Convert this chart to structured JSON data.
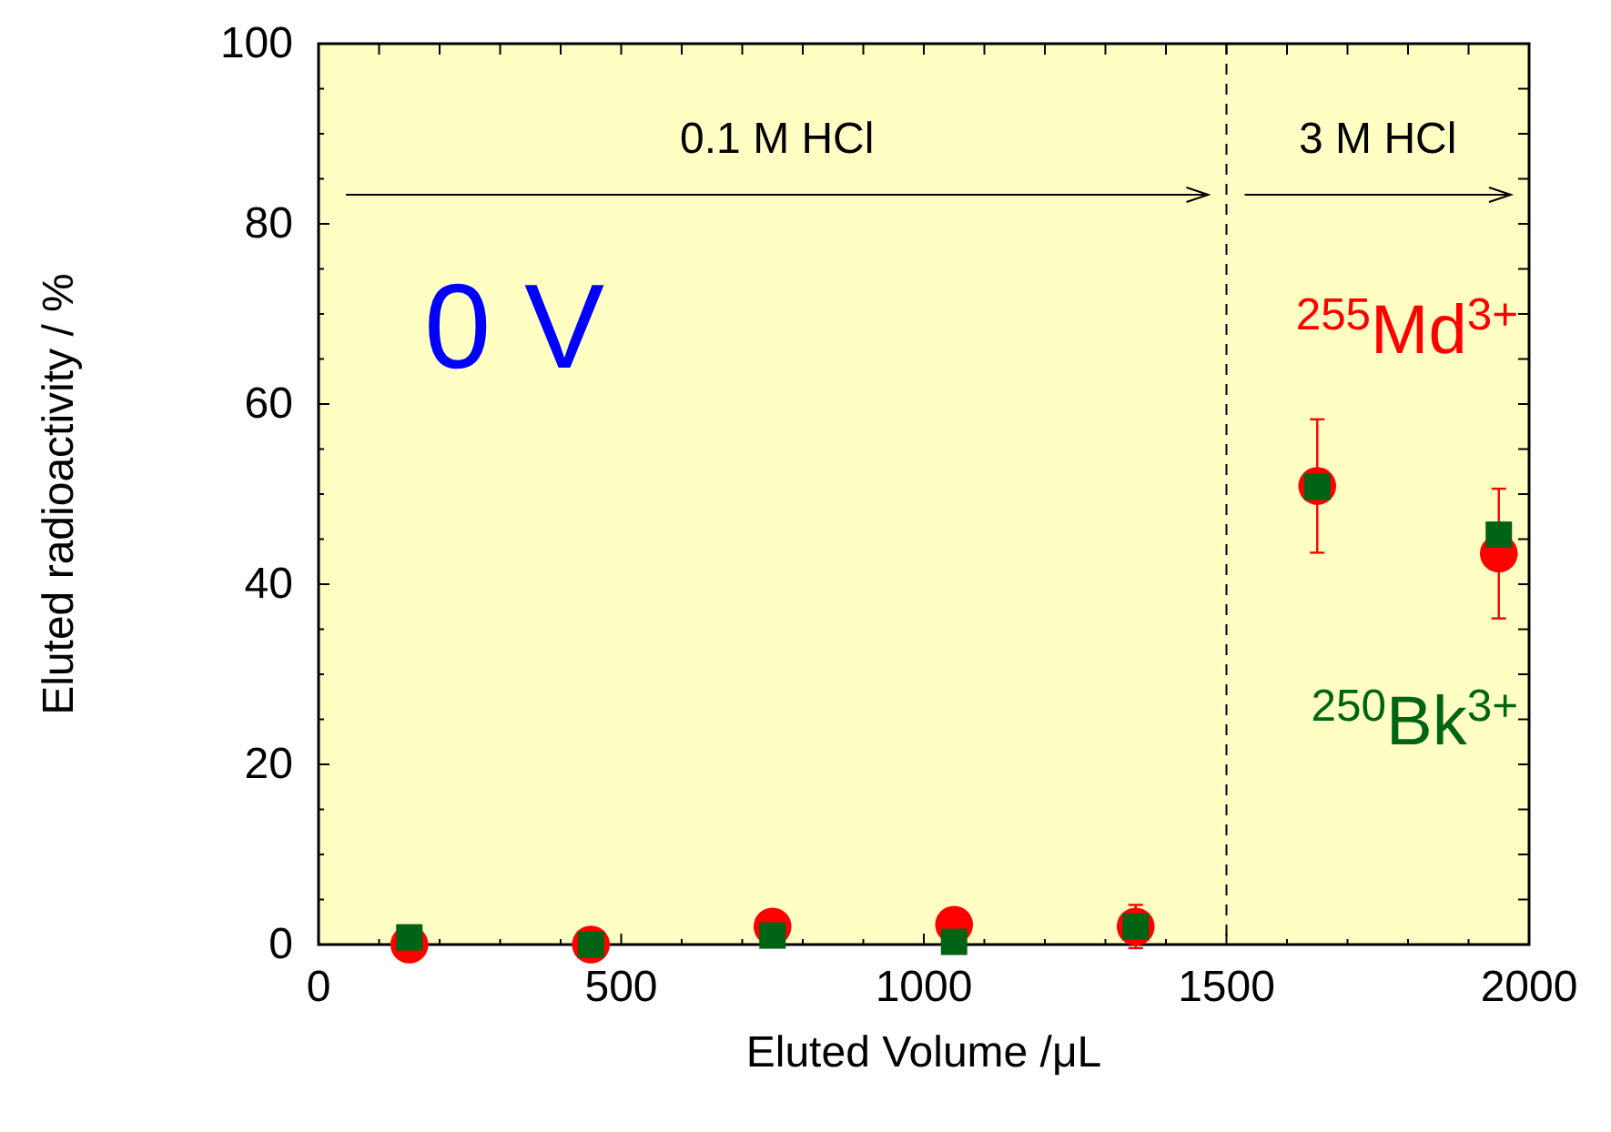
{
  "chart_data": {
    "type": "scatter",
    "xlabel": "Eluted Volume /μL",
    "ylabel": "Eluted radioactivity / %",
    "x": [
      150,
      450,
      750,
      1050,
      1350,
      1650,
      1950
    ],
    "series": [
      {
        "name": "$^{255}$Md$^{3+}$",
        "color": "#ff0000",
        "marker": "circle",
        "values": [
          0,
          0,
          2,
          2.2,
          2,
          50.9,
          43.4
        ],
        "errors": [
          null,
          null,
          null,
          null,
          2.4,
          7.4,
          7.2
        ]
      },
      {
        "name": "$^{250}$Bk$^{3+}$",
        "color": "#006414",
        "marker": "square",
        "values": [
          0.8,
          0,
          1,
          0.3,
          2,
          50.8,
          45.5
        ]
      }
    ],
    "xlim": [
      0,
      2000
    ],
    "xticks": [
      0,
      {
        "value": 100,
        "label": null
      },
      {
        "value": 200,
        "label": null
      },
      {
        "value": 300,
        "label": null
      },
      {
        "value": 400,
        "label": null
      },
      500,
      {
        "value": 600,
        "label": null
      },
      {
        "value": 700,
        "label": null
      },
      {
        "value": 800,
        "label": null
      },
      {
        "value": 900,
        "label": null
      },
      1000,
      {
        "value": 1100,
        "label": null
      },
      {
        "value": 1200,
        "label": null
      },
      {
        "value": 1300,
        "label": null
      },
      {
        "value": 1400,
        "label": null
      },
      1500,
      {
        "value": 1600,
        "label": null
      },
      {
        "value": 1700,
        "label": null
      },
      {
        "value": 1800,
        "label": null
      },
      {
        "value": 1900,
        "label": null
      },
      2000
    ],
    "ylim": [
      0,
      100
    ],
    "yticks": [
      0,
      {
        "value": 5,
        "label": null
      },
      {
        "value": 10,
        "label": null
      },
      {
        "value": 15,
        "label": null
      },
      20,
      {
        "value": 25,
        "label": null
      },
      {
        "value": 30,
        "label": null
      },
      {
        "value": 35,
        "label": null
      },
      40,
      {
        "value": 45,
        "label": null
      },
      {
        "value": 50,
        "label": null
      },
      {
        "value": 55,
        "label": null
      },
      60,
      {
        "value": 65,
        "label": null
      },
      {
        "value": 70,
        "label": null
      },
      {
        "value": 75,
        "label": null
      },
      80,
      {
        "value": 85,
        "label": null
      },
      {
        "value": 90,
        "label": null
      },
      {
        "value": 95,
        "label": null
      },
      100
    ],
    "ref_lines": [
      {
        "axis": "x",
        "value": 1500,
        "line_style": "dashed",
        "color": "#000000"
      }
    ],
    "annotations": [
      "0.1 M HCl",
      "3 M HCl",
      "0 V"
    ],
    "grid": false
  }
}
